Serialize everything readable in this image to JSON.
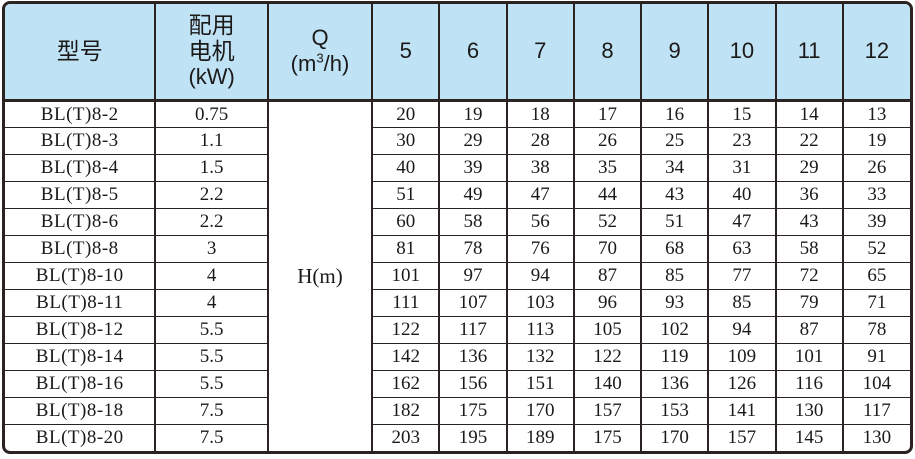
{
  "chart_data": {
    "type": "table",
    "title": "BL(T)8 pump model / motor power / head vs flow table",
    "header": {
      "model": "型号",
      "motor_line1": "配用",
      "motor_line2": "电机",
      "motor_line3": "(kW)",
      "q_line1": "Q",
      "q_line2_pre": "(m",
      "q_line2_sup": "3",
      "q_line2_post": "/h)",
      "flow_columns": [
        "5",
        "6",
        "7",
        "8",
        "9",
        "10",
        "11",
        "12"
      ]
    },
    "h_label": "H(m)",
    "rows": [
      {
        "model": "BL(T)8-2",
        "power": "0.75",
        "values": [
          20,
          19,
          18,
          17,
          16,
          15,
          14,
          13
        ]
      },
      {
        "model": "BL(T)8-3",
        "power": "1.1",
        "values": [
          30,
          29,
          28,
          26,
          25,
          23,
          22,
          19
        ]
      },
      {
        "model": "BL(T)8-4",
        "power": "1.5",
        "values": [
          40,
          39,
          38,
          35,
          34,
          31,
          29,
          26
        ]
      },
      {
        "model": "BL(T)8-5",
        "power": "2.2",
        "values": [
          51,
          49,
          47,
          44,
          43,
          40,
          36,
          33
        ]
      },
      {
        "model": "BL(T)8-6",
        "power": "2.2",
        "values": [
          60,
          58,
          56,
          52,
          51,
          47,
          43,
          39
        ]
      },
      {
        "model": "BL(T)8-8",
        "power": "3",
        "values": [
          81,
          78,
          76,
          70,
          68,
          63,
          58,
          52
        ]
      },
      {
        "model": "BL(T)8-10",
        "power": "4",
        "values": [
          101,
          97,
          94,
          87,
          85,
          77,
          72,
          65
        ]
      },
      {
        "model": "BL(T)8-11",
        "power": "4",
        "values": [
          111,
          107,
          103,
          96,
          93,
          85,
          79,
          71
        ]
      },
      {
        "model": "BL(T)8-12",
        "power": "5.5",
        "values": [
          122,
          117,
          113,
          105,
          102,
          94,
          87,
          78
        ]
      },
      {
        "model": "BL(T)8-14",
        "power": "5.5",
        "values": [
          142,
          136,
          132,
          122,
          119,
          109,
          101,
          91
        ]
      },
      {
        "model": "BL(T)8-16",
        "power": "5.5",
        "values": [
          162,
          156,
          151,
          140,
          136,
          126,
          116,
          104
        ]
      },
      {
        "model": "BL(T)8-18",
        "power": "7.5",
        "values": [
          182,
          175,
          170,
          157,
          153,
          141,
          130,
          117
        ]
      },
      {
        "model": "BL(T)8-20",
        "power": "7.5",
        "values": [
          203,
          195,
          189,
          175,
          170,
          157,
          145,
          130
        ]
      }
    ],
    "layout": {
      "grid": true,
      "header_background": "#bfe2f5",
      "border_color": "#2a2322",
      "text_color": "#1c1919"
    }
  }
}
